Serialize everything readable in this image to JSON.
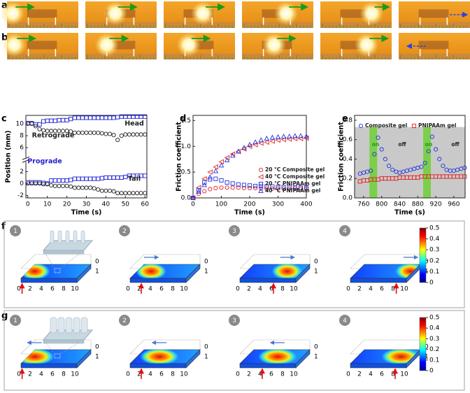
{
  "panel_labels": [
    "a",
    "b",
    "c",
    "d",
    "e",
    "f",
    "g"
  ],
  "chart_data": [
    {
      "type": "line",
      "y_label": "Position (mm)",
      "x_label": "Time (s)",
      "xlim": [
        -1,
        61
      ],
      "xticks": [
        0,
        10,
        20,
        30,
        40,
        50,
        60
      ],
      "ylim": [
        -2.4,
        11.4
      ],
      "yticks": [
        -2,
        0,
        2,
        6,
        8,
        10
      ],
      "axis_break": true,
      "annotations": [
        "Head",
        "Retrograde",
        "Prograde",
        "Tail"
      ],
      "x": [
        0,
        2,
        4,
        6,
        8,
        10,
        12,
        14,
        16,
        18,
        20,
        22,
        24,
        26,
        28,
        30,
        32,
        34,
        36,
        38,
        40,
        42,
        44,
        46,
        48,
        50,
        52,
        54,
        56,
        58,
        60
      ],
      "series": [
        {
          "color": "#1f1fd0",
          "marker": "square",
          "values": [
            10.1,
            10.1,
            9.9,
            9.9,
            10.4,
            10.5,
            10.5,
            10.5,
            10.6,
            10.6,
            10.6,
            10.8,
            11.0,
            11.0,
            11.0,
            11.0,
            11.0,
            11.0,
            11.0,
            11.0,
            11.0,
            11.0,
            11.0,
            11.1,
            11.2,
            11.2,
            11.2,
            11.2,
            11.2,
            11.2,
            11.2
          ]
        },
        {
          "color": "#222222",
          "marker": "circle",
          "values": [
            10.0,
            10.0,
            9.6,
            9.1,
            8.9,
            8.8,
            8.8,
            8.8,
            8.8,
            8.8,
            8.8,
            8.7,
            8.5,
            8.5,
            8.5,
            8.5,
            8.5,
            8.5,
            8.5,
            8.4,
            8.3,
            8.3,
            8.1,
            7.3,
            8.0,
            8.2,
            8.2,
            8.2,
            8.2,
            8.2,
            8.2
          ]
        },
        {
          "color": "#1f1fd0",
          "marker": "square",
          "values": [
            0.2,
            0.2,
            0.2,
            0.2,
            0.1,
            0.0,
            0.5,
            0.5,
            0.5,
            0.5,
            0.5,
            0.6,
            0.8,
            0.8,
            0.8,
            0.8,
            0.8,
            0.8,
            0.8,
            0.9,
            1.0,
            1.0,
            1.0,
            1.0,
            1.0,
            1.1,
            1.3,
            1.3,
            1.3,
            1.3,
            1.3
          ]
        },
        {
          "color": "#222222",
          "marker": "circle",
          "values": [
            0.0,
            0.0,
            0.0,
            0.0,
            -0.1,
            -0.1,
            -0.3,
            -0.4,
            -0.4,
            -0.4,
            -0.4,
            -0.5,
            -0.7,
            -0.7,
            -0.7,
            -0.7,
            -0.7,
            -0.8,
            -1.0,
            -1.2,
            -1.2,
            -1.2,
            -1.3,
            -1.6,
            -1.6,
            -1.6,
            -1.6,
            -1.6,
            -1.6,
            -1.6,
            -1.6
          ]
        }
      ]
    },
    {
      "type": "scatter",
      "y_label": "Friction coefficient",
      "x_label": "Time (s)",
      "xlim": [
        0,
        400
      ],
      "xticks": [
        0,
        100,
        200,
        300,
        400
      ],
      "ylim": [
        0,
        1.6
      ],
      "yticks": [
        {
          "value": 0,
          "label": "0.0"
        },
        0.5,
        {
          "value": 1,
          "label": "1.0"
        },
        1.5
      ],
      "legend": "lower right",
      "x": [
        0,
        20,
        40,
        60,
        80,
        100,
        120,
        140,
        160,
        180,
        200,
        220,
        240,
        260,
        280,
        300,
        320,
        340,
        360,
        380,
        400
      ],
      "series": [
        {
          "name": "20 °C Composite gel",
          "color": "#e02020",
          "marker": "circle",
          "values": [
            0,
            0.08,
            0.13,
            0.17,
            0.19,
            0.2,
            0.2,
            0.2,
            0.2,
            0.19,
            0.19,
            0.19,
            0.18,
            0.18,
            0.18,
            0.18,
            0.18,
            0.18,
            0.18,
            0.18,
            0.18
          ]
        },
        {
          "name": "40 °C Composite gel",
          "color": "#e02020",
          "marker": "triangle-left",
          "values": [
            0,
            0.2,
            0.37,
            0.5,
            0.6,
            0.7,
            0.78,
            0.85,
            0.9,
            0.95,
            1.0,
            1.03,
            1.06,
            1.08,
            1.1,
            1.12,
            1.13,
            1.14,
            1.15,
            1.15,
            1.16
          ]
        },
        {
          "name": "20 °C PNIPAAm gel",
          "color": "#2030e0",
          "marker": "square",
          "values": [
            0,
            0.15,
            0.3,
            0.36,
            0.37,
            0.34,
            0.3,
            0.28,
            0.26,
            0.25,
            0.24,
            0.23,
            0.23,
            0.22,
            0.22,
            0.21,
            0.21,
            0.21,
            0.2,
            0.2,
            0.2
          ]
        },
        {
          "name": "40 °C PNIPAAm gel",
          "color": "#2030e0",
          "marker": "triangle-up",
          "values": [
            0,
            0.12,
            0.25,
            0.4,
            0.52,
            0.63,
            0.73,
            0.82,
            0.9,
            0.97,
            1.03,
            1.08,
            1.12,
            1.15,
            1.17,
            1.18,
            1.19,
            1.19,
            1.2,
            1.2,
            1.19
          ]
        }
      ]
    },
    {
      "type": "scatter",
      "y_label": "Friction coefficient",
      "x_label": "Time (s)",
      "xlim": [
        740,
        985
      ],
      "xticks": [
        760,
        800,
        840,
        880,
        920,
        960
      ],
      "ylim": [
        0,
        0.85
      ],
      "yticks": [
        {
          "value": 0,
          "label": "0.0"
        },
        0.2,
        0.4,
        0.6,
        0.8
      ],
      "legend": "top",
      "shaded_ylim": [
        0,
        0.73
      ],
      "on_intervals": [
        [
          773,
          790
        ],
        [
          892,
          909
        ]
      ],
      "annotations": [
        "on",
        "off",
        "on",
        "off"
      ],
      "x": [
        752,
        760,
        768,
        776,
        784,
        792,
        800,
        808,
        816,
        824,
        832,
        840,
        848,
        856,
        864,
        872,
        880,
        888,
        896,
        904,
        912,
        920,
        928,
        936,
        944,
        952,
        960,
        968,
        976,
        984
      ],
      "series": [
        {
          "name": "Composite gel",
          "color": "#2030e0",
          "marker": "circle",
          "values": [
            0.25,
            0.26,
            0.27,
            0.28,
            0.45,
            0.62,
            0.5,
            0.4,
            0.33,
            0.29,
            0.27,
            0.26,
            0.27,
            0.28,
            0.29,
            0.3,
            0.31,
            0.32,
            0.36,
            0.48,
            0.63,
            0.5,
            0.4,
            0.33,
            0.29,
            0.28,
            0.28,
            0.29,
            0.3,
            0.31
          ]
        },
        {
          "name": "PNIPAAm gel",
          "color": "#e02020",
          "marker": "square",
          "values": [
            0.17,
            0.18,
            0.18,
            0.19,
            0.19,
            0.19,
            0.2,
            0.2,
            0.2,
            0.2,
            0.2,
            0.21,
            0.21,
            0.21,
            0.21,
            0.21,
            0.21,
            0.22,
            0.22,
            0.22,
            0.22,
            0.22,
            0.22,
            0.22,
            0.22,
            0.22,
            0.22,
            0.22,
            0.22,
            0.22
          ]
        }
      ]
    }
  ],
  "simulations": {
    "steps": [
      "1",
      "2",
      "3",
      "4"
    ],
    "length_ticks": [
      "0",
      "2",
      "4",
      "6",
      "8",
      "10"
    ],
    "width_ticks": [
      "0",
      "1"
    ],
    "colorbar": {
      "lim": [
        0,
        0.5
      ],
      "ticks": [
        0.5,
        0.4,
        0.3,
        0.2,
        0.1,
        0
      ]
    }
  }
}
